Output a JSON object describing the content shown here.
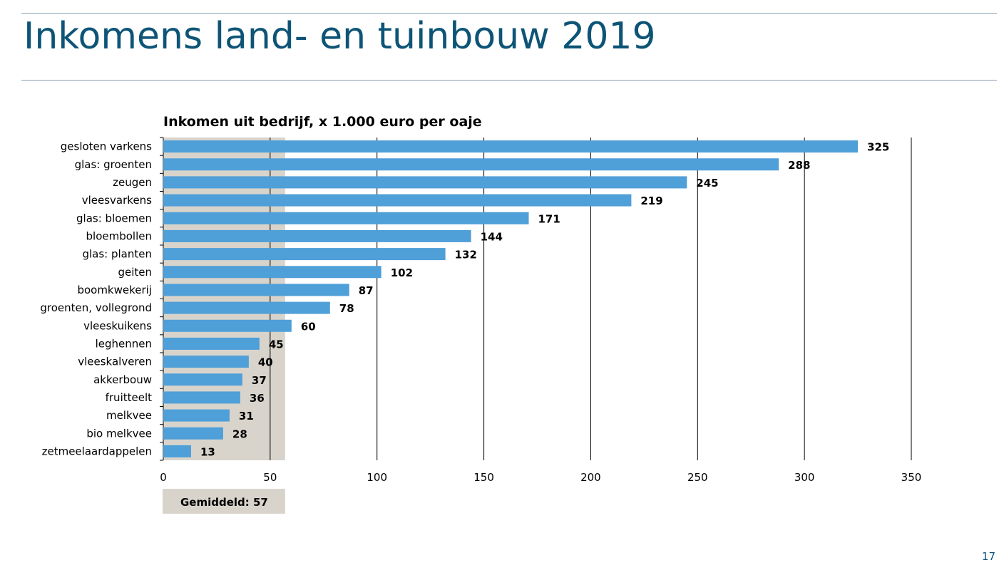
{
  "slide": {
    "title": "Inkomens land- en tuinbouw 2019",
    "page_number": "17"
  },
  "colors": {
    "title": "#0d5476",
    "bar": "#4f9fd8",
    "average_band": "#d8d4cc",
    "grid": "#000000",
    "rule": "#8aa0b2"
  },
  "chart_data": {
    "type": "bar",
    "orientation": "horizontal",
    "title": "Inkomen uit bedrijf, x 1.000 euro per oaje",
    "categories": [
      "gesloten varkens",
      "glas: groenten",
      "zeugen",
      "vleesvarkens",
      "glas: bloemen",
      "bloembollen",
      "glas: planten",
      "geiten",
      "boomkwekerij",
      "groenten, vollegrond",
      "vleeskuikens",
      "leghennen",
      "vleeskalveren",
      "akkerbouw",
      "fruitteelt",
      "melkvee",
      "bio melkvee",
      "zetmeelaardappelen"
    ],
    "values": [
      325,
      288,
      245,
      219,
      171,
      144,
      132,
      102,
      87,
      78,
      60,
      45,
      40,
      37,
      36,
      31,
      28,
      13
    ],
    "xlim": [
      0,
      350
    ],
    "xticks": [
      0,
      50,
      100,
      150,
      200,
      250,
      300,
      350
    ],
    "grid": true,
    "data_labels": true,
    "average": {
      "value": 57,
      "label": "Gemiddeld: 57"
    }
  }
}
